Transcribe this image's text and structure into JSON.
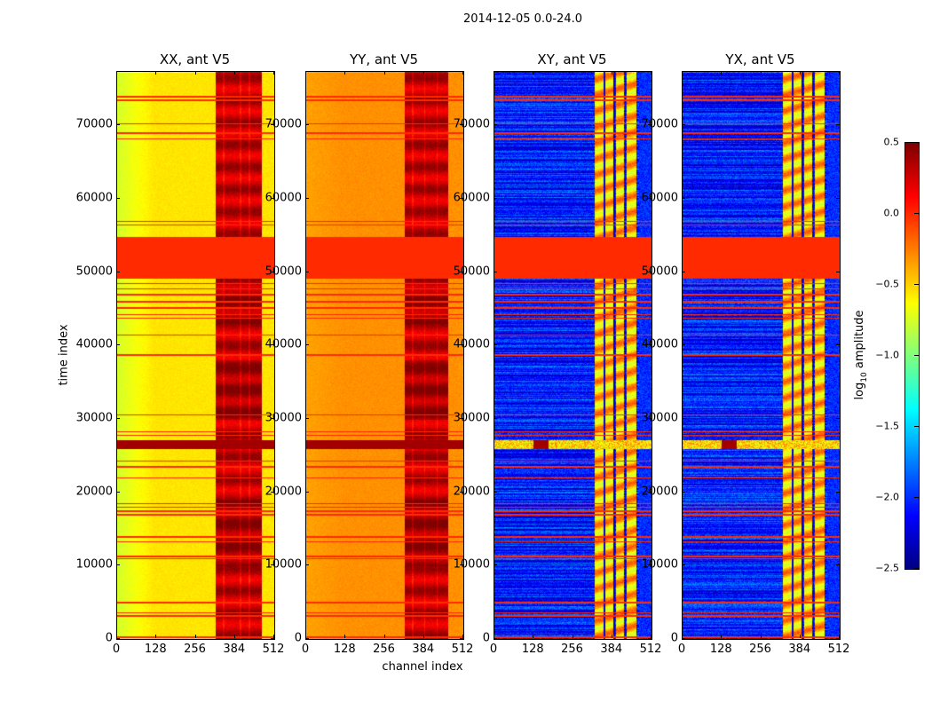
{
  "figure_title": "2014-12-05 0.0-24.0",
  "chart_data": {
    "type": "heatmap",
    "xlabel": "channel index",
    "ylabel": "time index",
    "xlim": [
      0,
      512
    ],
    "ylim": [
      0,
      77300
    ],
    "xticks": [
      "0",
      "128",
      "256",
      "384",
      "512"
    ],
    "xtick_values": [
      0,
      128,
      256,
      384,
      512
    ],
    "yticks": [
      "0",
      "10000",
      "20000",
      "30000",
      "40000",
      "50000",
      "60000",
      "70000"
    ],
    "ytick_values": [
      0,
      10000,
      20000,
      30000,
      40000,
      50000,
      60000,
      70000
    ],
    "colorbar": {
      "label": "log10 amplitude",
      "label_main": "log",
      "label_sub": "10",
      "label_rest": " amplitude",
      "colormap": "jet",
      "range": [
        -2.5,
        0.5
      ],
      "ticks": [
        "0.5",
        "0.0",
        "−0.5",
        "−1.0",
        "−1.5",
        "−2.0",
        "−2.5"
      ],
      "tick_values": [
        0.5,
        0.0,
        -0.5,
        -1.0,
        -1.5,
        -2.0,
        -2.5
      ]
    },
    "flagged_time_range": [
      49200,
      54900
    ],
    "flag_lines": [
      74000,
      73500,
      70300,
      69000,
      68200,
      57000,
      56500,
      48500,
      47800,
      47000,
      46000,
      45200,
      44300,
      43800,
      41500,
      38800,
      30600,
      28300,
      27800,
      24300,
      23500,
      22000,
      18500,
      18000,
      17500,
      17000,
      14000,
      13300,
      11300,
      11000,
      5000,
      3600,
      3200,
      300
    ],
    "rfi_band_time_range": [
      26000,
      27200
    ],
    "panels": [
      {
        "title": "XX, ant V5",
        "base": -0.55,
        "edge_gradient": -0.75,
        "bright_channels": [
          [
            320,
            470
          ]
        ],
        "bright_level": 0.3,
        "gap_channels": [
          345,
          400,
          430
        ]
      },
      {
        "title": "YY, ant V5",
        "base": -0.3,
        "edge_gradient": -0.35,
        "bright_channels": [
          [
            320,
            460
          ]
        ],
        "bright_level": 0.3,
        "gap_channels": [
          345,
          385,
          425
        ]
      },
      {
        "title": "XY, ant V5",
        "base": -2.05,
        "edge_gradient": -2.05,
        "bright_channels": [
          [
            325,
            355
          ],
          [
            360,
            385
          ],
          [
            395,
            420
          ],
          [
            430,
            460
          ]
        ],
        "bright_level": -0.45,
        "gap_channels": [
          357,
          390,
          425
        ]
      },
      {
        "title": "YX, ant V5",
        "base": -2.05,
        "edge_gradient": -2.05,
        "bright_channels": [
          [
            325,
            355
          ],
          [
            360,
            385
          ],
          [
            395,
            420
          ],
          [
            430,
            460
          ]
        ],
        "bright_level": -0.45,
        "gap_channels": [
          357,
          390,
          425
        ]
      }
    ]
  }
}
